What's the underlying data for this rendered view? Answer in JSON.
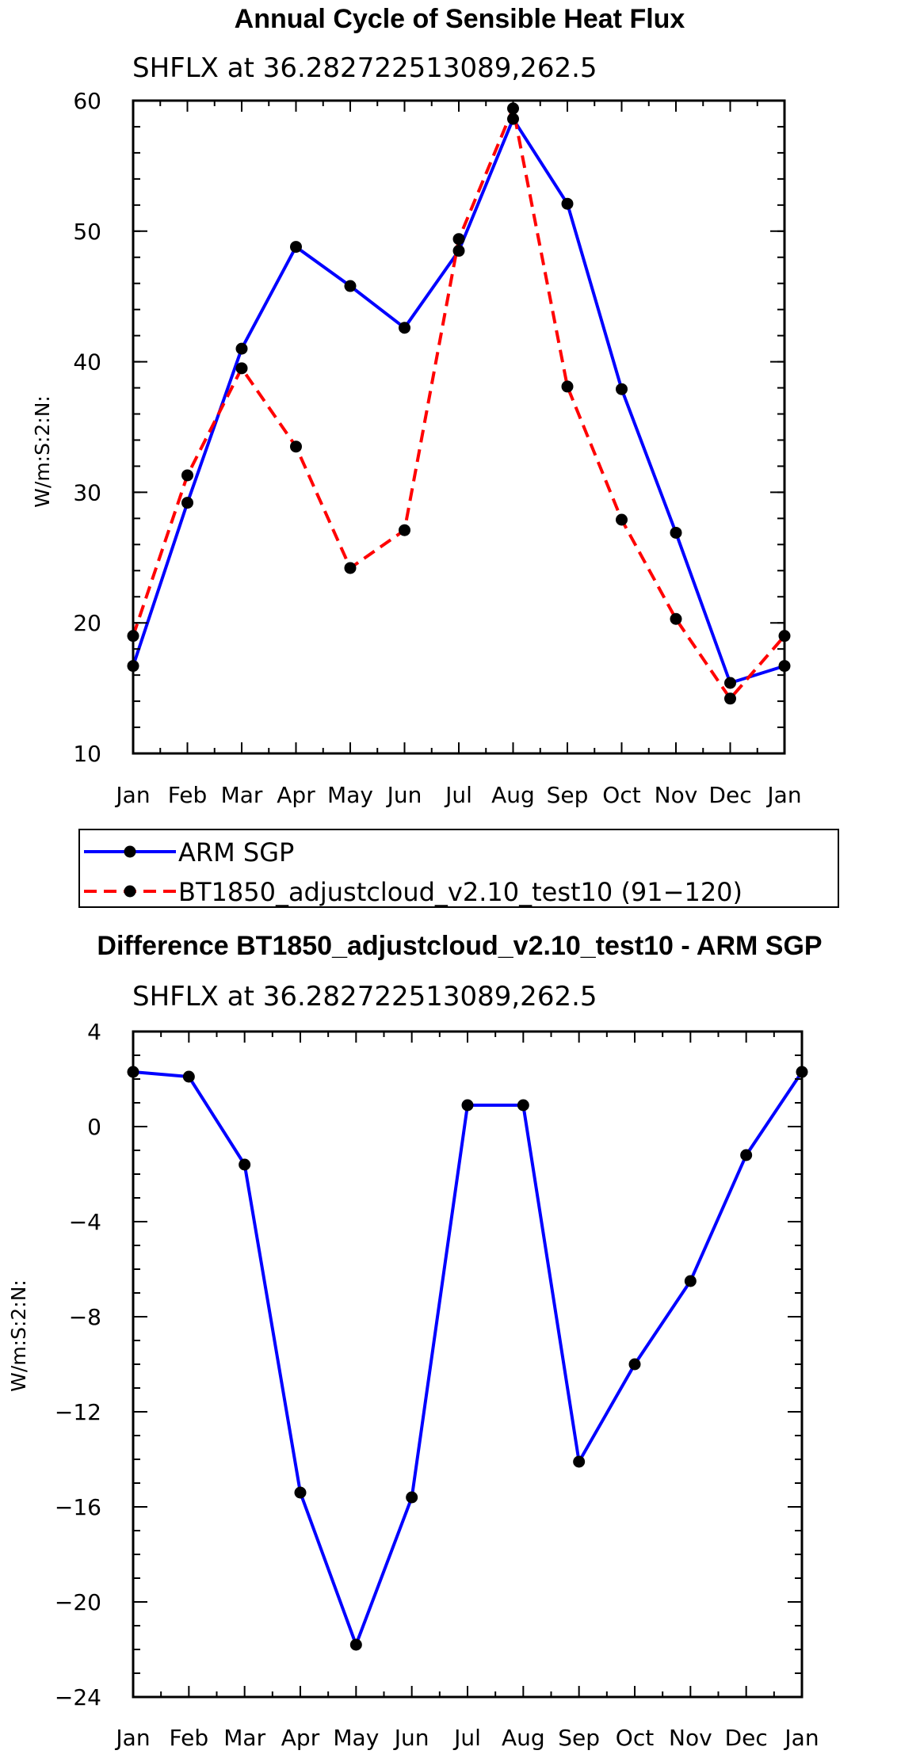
{
  "chart_data": [
    {
      "type": "line",
      "title": "Annual Cycle of Sensible Heat Flux",
      "subtitle": "SHFLX at 36.282722513089,262.5",
      "ylabel": "W/m:S:2:N:",
      "xlabel": "",
      "categories": [
        "Jan",
        "Feb",
        "Mar",
        "Apr",
        "May",
        "Jun",
        "Jul",
        "Aug",
        "Sep",
        "Oct",
        "Nov",
        "Dec",
        "Jan"
      ],
      "ylim": [
        10,
        60
      ],
      "yticks": [
        "10",
        "20",
        "30",
        "40",
        "50",
        "60"
      ],
      "series": [
        {
          "name": "ARM SGP",
          "color": "#0000ff",
          "dash": "solid",
          "values": [
            16.7,
            29.2,
            41.0,
            48.8,
            45.8,
            42.6,
            48.5,
            58.6,
            52.1,
            37.9,
            26.9,
            15.4,
            16.7
          ]
        },
        {
          "name": "BT1850_adjustcloud_v2.10_test10 (91−120)",
          "color": "#ff0000",
          "dash": "dashed",
          "values": [
            19.0,
            31.3,
            39.5,
            33.5,
            24.2,
            27.1,
            49.4,
            59.4,
            38.1,
            27.9,
            20.3,
            14.2,
            19.0
          ]
        }
      ]
    },
    {
      "type": "line",
      "title": "Difference BT1850_adjustcloud_v2.10_test10 - ARM SGP",
      "subtitle": "SHFLX at 36.282722513089,262.5",
      "ylabel": "W/m:S:2:N:",
      "xlabel": "",
      "categories": [
        "Jan",
        "Feb",
        "Mar",
        "Apr",
        "May",
        "Jun",
        "Jul",
        "Aug",
        "Sep",
        "Oct",
        "Nov",
        "Dec",
        "Jan"
      ],
      "ylim": [
        -24,
        4
      ],
      "yticks": [
        "−24",
        "−20",
        "−16",
        "−12",
        "−8",
        "−4",
        "0",
        "4"
      ],
      "series": [
        {
          "name": "Difference",
          "color": "#0000ff",
          "dash": "solid",
          "values": [
            2.3,
            2.1,
            -1.6,
            -15.4,
            -21.8,
            -15.6,
            0.9,
            0.9,
            -14.1,
            -10.0,
            -6.5,
            -1.2,
            2.3
          ]
        }
      ]
    }
  ]
}
